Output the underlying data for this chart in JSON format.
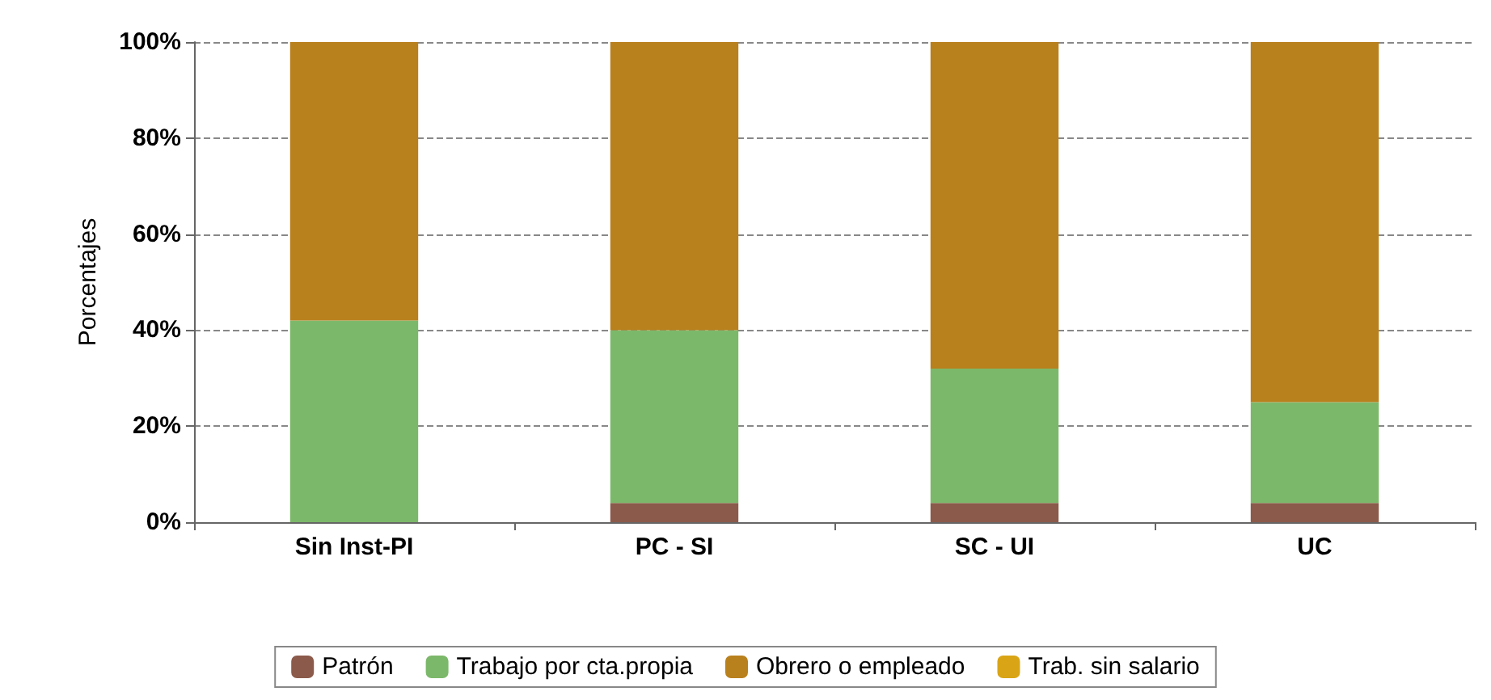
{
  "chart_data": {
    "type": "bar",
    "stacked": true,
    "ylabel": "Porcentajes",
    "categories": [
      "Sin Inst-PI",
      "PC - SI",
      "SC - UI",
      "UC"
    ],
    "series": [
      {
        "name": "Patrón",
        "color": "#8b5a4a",
        "values": [
          0,
          4,
          4,
          4
        ]
      },
      {
        "name": "Trabajo por cta.propia",
        "color": "#7cb86a",
        "values": [
          42,
          36,
          28,
          21
        ]
      },
      {
        "name": "Obrero o empleado",
        "color": "#b9801e",
        "values": [
          58,
          60,
          68,
          75
        ]
      },
      {
        "name": "Trab. sin salario",
        "color": "#d9a516",
        "values": [
          0,
          0,
          0,
          0
        ]
      }
    ],
    "ylim": [
      0,
      100
    ],
    "yticks": [
      {
        "value": 0,
        "label": "0%"
      },
      {
        "value": 20,
        "label": "20%"
      },
      {
        "value": 40,
        "label": "40%"
      },
      {
        "value": 60,
        "label": "60%"
      },
      {
        "value": 80,
        "label": "80%"
      },
      {
        "value": 100,
        "label": "100%"
      }
    ],
    "grid": "y",
    "legend": "bottom"
  }
}
